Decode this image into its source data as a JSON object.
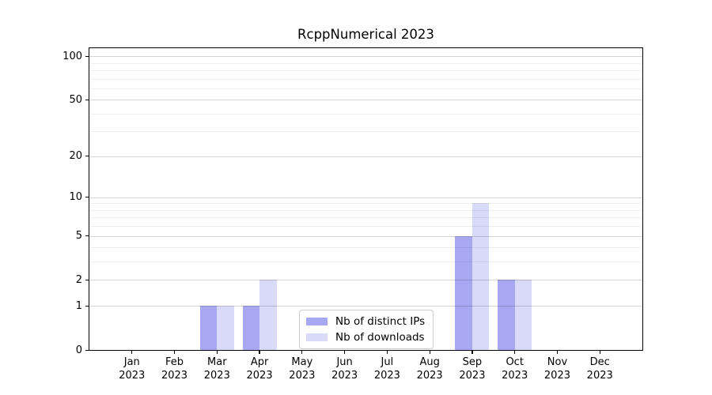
{
  "title": "RcppNumerical 2023",
  "chart_data": {
    "type": "bar",
    "title": "RcppNumerical 2023",
    "xlabel": "",
    "ylabel": "",
    "categories": [
      "Jan",
      "Feb",
      "Mar",
      "Apr",
      "May",
      "Jun",
      "Jul",
      "Aug",
      "Sep",
      "Oct",
      "Nov",
      "Dec"
    ],
    "category_year": "2023",
    "series": [
      {
        "name": "Nb of distinct IPs",
        "color": "#a8a8f2",
        "values": [
          0,
          0,
          1,
          1,
          0,
          0,
          0,
          0,
          5,
          2,
          0,
          0
        ]
      },
      {
        "name": "Nb of downloads",
        "color": "#d9d9f8",
        "values": [
          0,
          0,
          1,
          2,
          0,
          0,
          0,
          0,
          9,
          2,
          0,
          0
        ]
      }
    ],
    "y_axis": {
      "scale": "log1p",
      "ticks": [
        0,
        1,
        2,
        5,
        10,
        20,
        50,
        100
      ],
      "minor_gridlines": [
        3,
        4,
        6,
        7,
        8,
        9,
        30,
        40,
        60,
        70,
        80,
        90
      ],
      "max": 113.5
    },
    "grid": true,
    "legend": {
      "position": "bottom-center",
      "entries": [
        "Nb of distinct IPs",
        "Nb of downloads"
      ]
    }
  }
}
